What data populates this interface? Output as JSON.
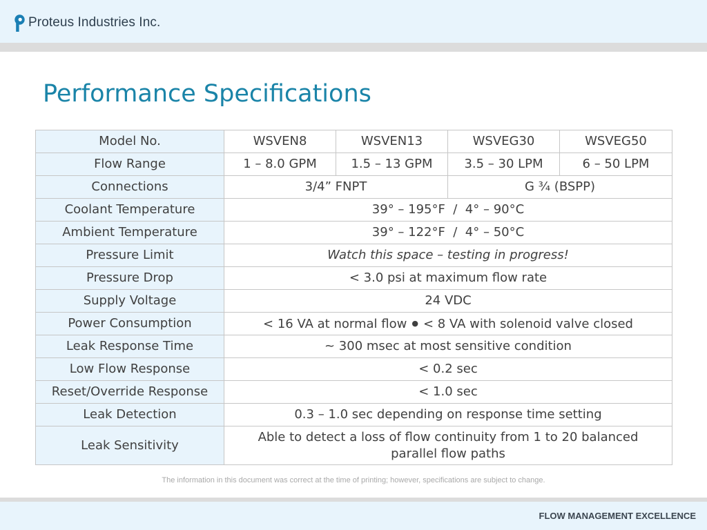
{
  "brand": {
    "company_name": "Proteus Industries Inc.",
    "logo_color": "#1a7fb4"
  },
  "page": {
    "title": "Performance Specifications",
    "title_color": "#1a84a8"
  },
  "specs": {
    "model_label": "Model No.",
    "models": [
      "WSVEN8",
      "WSVEN13",
      "WSVEG30",
      "WSVEG50"
    ],
    "flow_range": {
      "label": "Flow Range",
      "values": [
        "1 – 8.0 GPM",
        "1.5 – 13 GPM",
        "3.5 – 30 LPM",
        "6 – 50 LPM"
      ]
    },
    "connections": {
      "label": "Connections",
      "values": [
        "3/4” FNPT",
        "G ¾ (BSPP)"
      ]
    },
    "coolant_temperature": {
      "label": "Coolant Temperature",
      "value": "39° – 195°F  /  4° – 90°C"
    },
    "ambient_temperature": {
      "label": "Ambient Temperature",
      "value": "39° – 122°F  /  4° – 50°C"
    },
    "pressure_limit": {
      "label": "Pressure Limit",
      "value": "Watch this space – testing in progress!"
    },
    "pressure_drop": {
      "label": "Pressure Drop",
      "value": "< 3.0 psi at maximum flow rate"
    },
    "supply_voltage": {
      "label": "Supply Voltage",
      "value": "24 VDC"
    },
    "power_consumption": {
      "label": "Power Consumption",
      "value_a": "< 16 VA at normal flow",
      "separator": "●",
      "value_b": "< 8 VA with solenoid valve closed"
    },
    "leak_response_time": {
      "label": "Leak Response Time",
      "value": "~ 300 msec at most sensitive condition"
    },
    "low_flow_response": {
      "label": "Low Flow Response",
      "value": "< 0.2 sec"
    },
    "reset_override_response": {
      "label": "Reset/Override Response",
      "value": "< 1.0 sec"
    },
    "leak_detection": {
      "label": "Leak Detection",
      "value": "0.3 – 1.0 sec depending on response time setting"
    },
    "leak_sensitivity": {
      "label": "Leak Sensitivity",
      "value_line1": "Able to detect a loss of flow continuity from 1 to 20 balanced",
      "value_line2": "parallel flow paths"
    }
  },
  "footer": {
    "disclaimer": "The information in this document was correct at the time of printing; however, specifications are subject to change.",
    "tagline": "FLOW MANAGEMENT EXCELLENCE"
  }
}
